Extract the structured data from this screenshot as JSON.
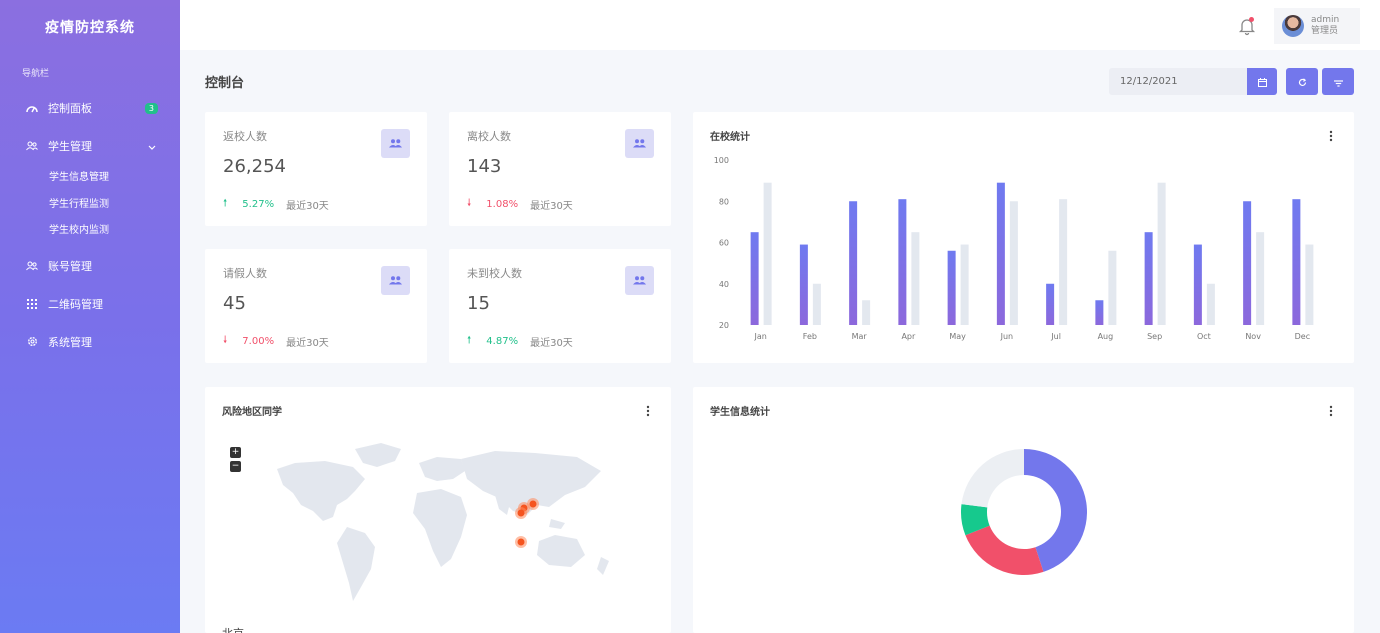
{
  "app": {
    "title": "疫情防控系统"
  },
  "sidebar": {
    "caption": "导航栏",
    "items": [
      {
        "label": "控制面板",
        "icon": "gauge-icon",
        "badge": "3"
      },
      {
        "label": "学生管理",
        "icon": "users-icon",
        "expanded": true,
        "children": [
          "学生信息管理",
          "学生行程监测",
          "学生校内监测"
        ]
      },
      {
        "label": "账号管理",
        "icon": "users-icon"
      },
      {
        "label": "二维码管理",
        "icon": "grid-icon"
      },
      {
        "label": "系统管理",
        "icon": "gear-icon"
      }
    ]
  },
  "topbar": {
    "username": "admin",
    "role": "管理员"
  },
  "page": {
    "title": "控制台",
    "date": "12/12/2021"
  },
  "stats": [
    {
      "label": "返校人数",
      "value": "26,254",
      "trend": "up",
      "pct": "5.27%",
      "period": "最近30天"
    },
    {
      "label": "离校人数",
      "value": "143",
      "trend": "down",
      "pct": "1.08%",
      "period": "最近30天"
    },
    {
      "label": "请假人数",
      "value": "45",
      "trend": "down",
      "pct": "7.00%",
      "period": "最近30天"
    },
    {
      "label": "未到校人数",
      "value": "15",
      "trend": "up",
      "pct": "4.87%",
      "period": "最近30天"
    }
  ],
  "map_card": {
    "title": "风险地区同学",
    "first_city": "北京"
  },
  "donut_card": {
    "title": "学生信息统计"
  },
  "colors": {
    "accent": "#7377ec",
    "up": "#22c08b",
    "down": "#f1506a",
    "sidebar_top": "#8b6fe0",
    "sidebar_bottom": "#6b7bf3"
  },
  "chart_data": [
    {
      "type": "bar",
      "title": "在校统计",
      "categories": [
        "Jan",
        "Feb",
        "Mar",
        "Apr",
        "May",
        "Jun",
        "Jul",
        "Aug",
        "Sep",
        "Oct",
        "Nov",
        "Dec"
      ],
      "series": [
        {
          "values": [
            65,
            59,
            80,
            81,
            56,
            89,
            40,
            32,
            65,
            59,
            80,
            81
          ],
          "color": "#7377ec"
        },
        {
          "values": [
            89,
            40,
            32,
            65,
            59,
            80,
            81,
            56,
            89,
            40,
            65,
            59
          ],
          "color": "#e3e8ef"
        }
      ],
      "ylim": [
        20,
        100
      ],
      "yticks": [
        100,
        80,
        60,
        40,
        20
      ]
    },
    {
      "type": "pie",
      "title": "学生信息统计",
      "values": [
        45,
        24,
        8,
        23
      ],
      "colors": [
        "#7377ec",
        "#f1506a",
        "#16c98d",
        "#eceff3"
      ]
    }
  ]
}
